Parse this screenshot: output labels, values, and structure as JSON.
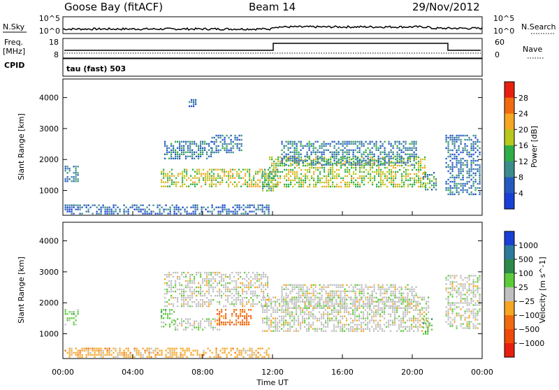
{
  "header": {
    "station": "Goose Bay (fitACF)",
    "beam": "Beam 14",
    "date": "29/Nov/2012"
  },
  "noise_panel": {
    "left_label": "N.Sky",
    "right_label": "N.Search",
    "left_top_tick": "10^5",
    "left_bottom_tick": "10^0",
    "right_top_tick": "10^5",
    "right_bottom_tick": "10^0"
  },
  "freq_panel": {
    "left_label": "Freq.",
    "left_unit": "[MHz]",
    "cpid_label": "CPID",
    "right_label": "Nave",
    "left_ticks": [
      "18",
      "8"
    ],
    "right_ticks": [
      "60",
      "0"
    ]
  },
  "cpid_panel": {
    "text": "tau (fast) 503"
  },
  "colors": {
    "axis": "#000000",
    "gray_scatter": "#c0c0c0"
  },
  "chart_data": [
    {
      "type": "line",
      "title": "",
      "series": [
        {
          "name": "N.Sky",
          "x": [
            "00:00",
            "02:00",
            "04:00",
            "06:00",
            "08:00",
            "10:00",
            "12:00",
            "14:00",
            "16:00",
            "18:00",
            "20:00",
            "22:00",
            "24:00"
          ],
          "values": [
            1,
            1.2,
            1.2,
            1.3,
            1.3,
            1.4,
            2,
            2,
            2,
            2,
            1.8,
            1.5,
            1
          ]
        }
      ]
    },
    {
      "type": "line",
      "title": "",
      "series": [
        {
          "name": "Freq.",
          "x": [
            "00:00",
            "12:00",
            "12:01",
            "21:50",
            "21:51",
            "24:00"
          ],
          "values": [
            10,
            10,
            14,
            14,
            10,
            10
          ]
        },
        {
          "name": "Nave",
          "x": [
            "00:00",
            "24:00"
          ],
          "values": [
            10,
            10
          ]
        }
      ]
    },
    {
      "type": "heatmap",
      "ylabel": "Slant Range [km]",
      "yticks": [
        "1000",
        "2000",
        "3000",
        "4000"
      ],
      "ylim": [
        200,
        4600
      ],
      "colorbar": {
        "label": "Power [dB]",
        "ticks": [
          "4",
          "8",
          "12",
          "16",
          "20",
          "24",
          "28"
        ],
        "range": [
          0,
          32
        ],
        "colors": [
          "#1a3fd6",
          "#245ac0",
          "#3c8c8c",
          "#2fae47",
          "#b8c81c",
          "#f5a623",
          "#f26a0f",
          "#e81f0f"
        ]
      },
      "regions": [
        {
          "t": [
            0.1,
            0.9
          ],
          "r": [
            1300,
            1800
          ],
          "v": 10
        },
        {
          "t": [
            5.6,
            11.8
          ],
          "r": [
            1100,
            1700
          ],
          "v": 18
        },
        {
          "t": [
            5.8,
            8.5
          ],
          "r": [
            2000,
            2600
          ],
          "v": 9
        },
        {
          "t": [
            8.5,
            10.3
          ],
          "r": [
            2200,
            2800
          ],
          "v": 8
        },
        {
          "t": [
            11.4,
            12.3
          ],
          "r": [
            1000,
            1700
          ],
          "v": 14
        },
        {
          "t": [
            11.8,
            20.7
          ],
          "r": [
            1100,
            2100
          ],
          "v": 17
        },
        {
          "t": [
            12.5,
            20.3
          ],
          "r": [
            1800,
            2600
          ],
          "v": 9
        },
        {
          "t": [
            20.6,
            21.4
          ],
          "r": [
            1000,
            1600
          ],
          "v": 12
        },
        {
          "t": [
            21.9,
            23.9
          ],
          "r": [
            900,
            2800
          ],
          "v": 8
        },
        {
          "t": [
            0.1,
            11.8
          ],
          "r": [
            250,
            550
          ],
          "v": 7
        },
        {
          "t": [
            7.2,
            7.6
          ],
          "r": [
            3700,
            3950
          ],
          "v": 6
        }
      ]
    },
    {
      "type": "heatmap",
      "ylabel": "Slant Range [km]",
      "unit": "Velocity [m s^-1]",
      "xlabel": "Time UT",
      "xticks": [
        "00:00",
        "04:00",
        "08:00",
        "12:00",
        "16:00",
        "20:00",
        "00:00"
      ],
      "yticks": [
        "1000",
        "2000",
        "3000",
        "4000"
      ],
      "ylim": [
        200,
        4600
      ],
      "colorbar": {
        "label": "Velocity",
        "ticks": [
          "1000",
          "500",
          "100",
          "25",
          "−25",
          "−100",
          "−500",
          "−1000"
        ],
        "colors": [
          "#1a3fd6",
          "#2d7a9c",
          "#2b8a4a",
          "#5ccb3a",
          "#c0c0c0",
          "#f5a623",
          "#f26a0f",
          "#f04a0a",
          "#e81f0f"
        ]
      },
      "regions": [
        {
          "t": [
            0.1,
            0.9
          ],
          "r": [
            1300,
            1800
          ],
          "c": 3
        },
        {
          "t": [
            5.6,
            6.4
          ],
          "r": [
            1200,
            1800
          ],
          "c": 3
        },
        {
          "t": [
            6.4,
            9.0
          ],
          "r": [
            1100,
            1500
          ],
          "c": 4
        },
        {
          "t": [
            8.8,
            10.8
          ],
          "r": [
            1300,
            1800
          ],
          "c": 6
        },
        {
          "t": [
            5.8,
            11.8
          ],
          "r": [
            1900,
            3000
          ],
          "c": 4
        },
        {
          "t": [
            11.4,
            21.0
          ],
          "r": [
            1100,
            2200
          ],
          "c": 4
        },
        {
          "t": [
            12.5,
            20.3
          ],
          "r": [
            1800,
            2600
          ],
          "c": 4
        },
        {
          "t": [
            20.6,
            21.2
          ],
          "r": [
            1000,
            1500
          ],
          "c": 3
        },
        {
          "t": [
            21.9,
            23.9
          ],
          "r": [
            1200,
            2900
          ],
          "c": 4
        },
        {
          "t": [
            0.1,
            11.8
          ],
          "r": [
            250,
            550
          ],
          "c": 5
        }
      ]
    }
  ]
}
